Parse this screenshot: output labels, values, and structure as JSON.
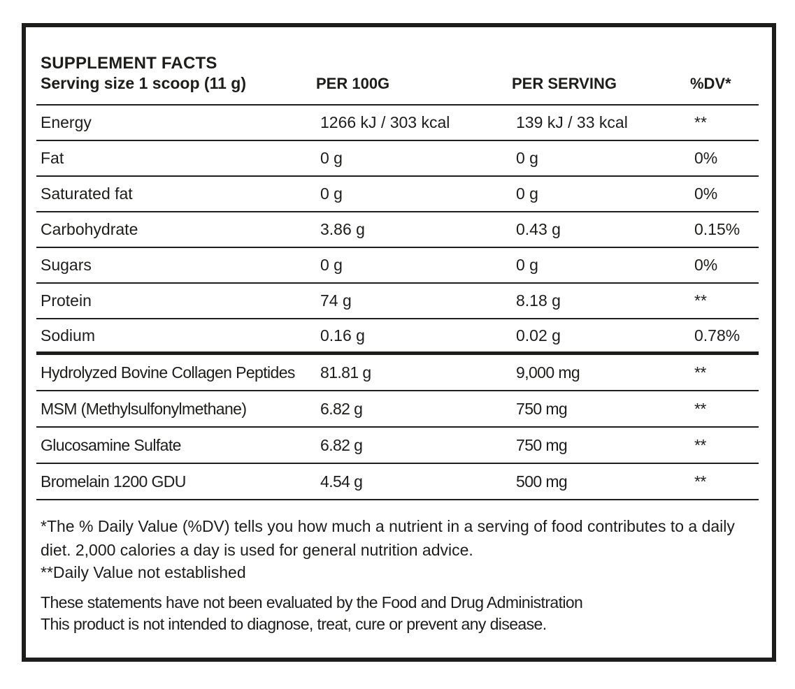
{
  "header": {
    "title": "SUPPLEMENT FACTS",
    "serving_size": "Serving size 1 scoop (11 g)",
    "columns": {
      "per_100g": "PER 100G",
      "per_serving": "PER SERVING",
      "dv": "%DV*"
    }
  },
  "nutrients": [
    {
      "name": "Energy",
      "per_100g": "1266 kJ / 303 kcal",
      "per_serving": "139 kJ / 33 kcal",
      "dv": "**"
    },
    {
      "name": "Fat",
      "per_100g": "0 g",
      "per_serving": "0 g",
      "dv": "0%"
    },
    {
      "name": "Saturated fat",
      "per_100g": "0 g",
      "per_serving": "0 g",
      "dv": "0%"
    },
    {
      "name": "Carbohydrate",
      "per_100g": "3.86 g",
      "per_serving": "0.43 g",
      "dv": "0.15%"
    },
    {
      "name": "Sugars",
      "per_100g": "0 g",
      "per_serving": "0 g",
      "dv": "0%"
    },
    {
      "name": "Protein",
      "per_100g": "74 g",
      "per_serving": "8.18 g",
      "dv": "**"
    },
    {
      "name": "Sodium",
      "per_100g": "0.16 g",
      "per_serving": "0.02 g",
      "dv": "0.78%"
    }
  ],
  "ingredients": [
    {
      "name": "Hydrolyzed Bovine Collagen Peptides",
      "per_100g": "81.81 g",
      "per_serving": "9,000 mg",
      "dv": "**"
    },
    {
      "name": "MSM (Methylsulfonylmethane)",
      "per_100g": "6.82 g",
      "per_serving": "750 mg",
      "dv": "**"
    },
    {
      "name": "Glucosamine Sulfate",
      "per_100g": "6.82 g",
      "per_serving": "750 mg",
      "dv": "**"
    },
    {
      "name": "Bromelain 1200 GDU",
      "per_100g": "4.54 g",
      "per_serving": "500 mg",
      "dv": "**"
    }
  ],
  "footnotes": {
    "dv_note": "*The % Daily Value (%DV) tells you how much a nutrient in a serving of food contributes to a daily diet. 2,000 calories a day is used for general nutrition advice.",
    "not_established": "**Daily Value not established",
    "fda_line1": "These statements have not been evaluated by the Food and Drug Administration",
    "fda_line2": "This product is not intended to diagnose, treat, cure or prevent any disease."
  },
  "colors": {
    "text": "#1d1d1b",
    "border": "#1d1d1b",
    "background": "#ffffff"
  }
}
